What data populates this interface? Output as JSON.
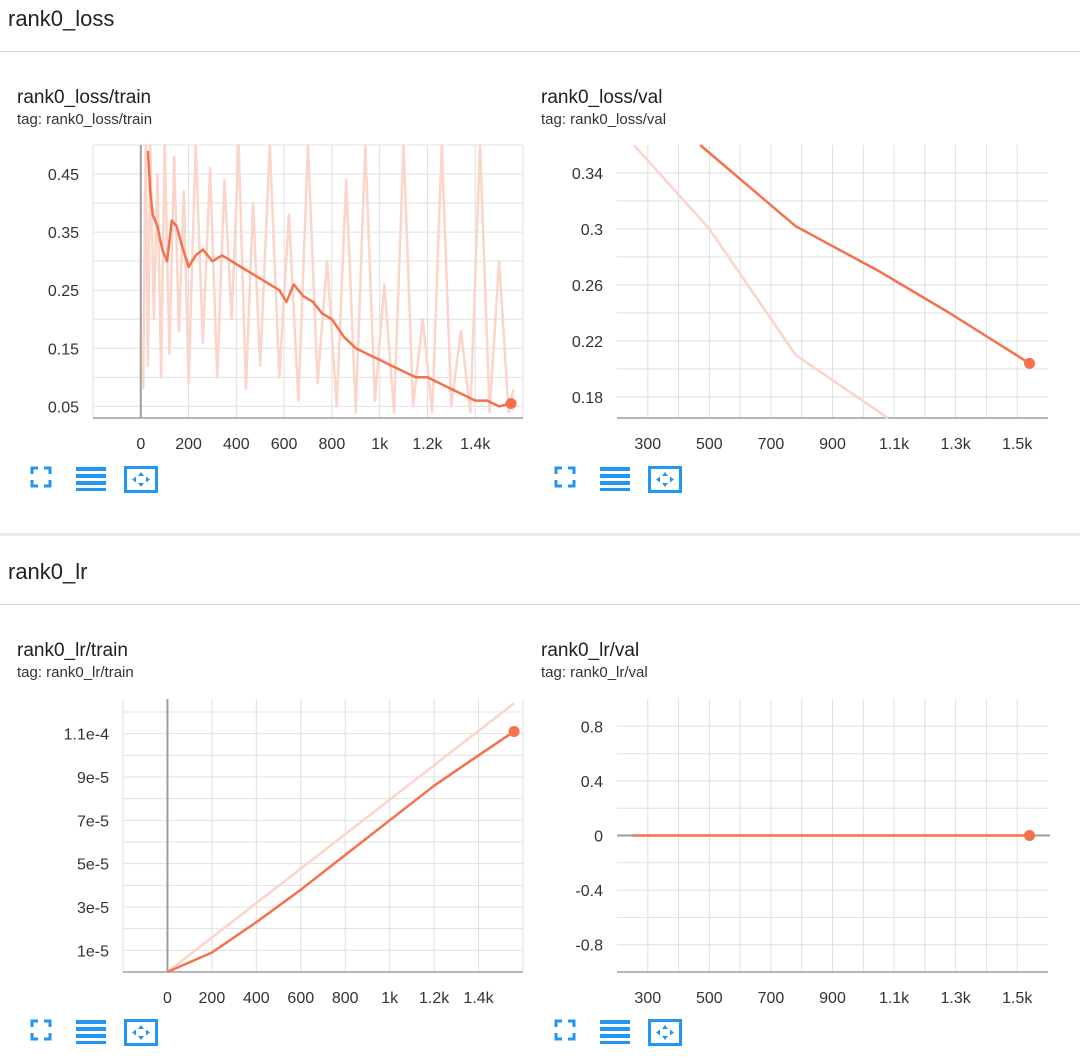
{
  "sections": [
    {
      "title": "rank0_loss"
    },
    {
      "title": "rank0_lr"
    }
  ],
  "colors": {
    "series": "#f4714c",
    "raw": "#fbd5c9",
    "axis": "#9e9e9e",
    "grid": "#e0e0e0",
    "button": "#2196f3"
  },
  "buttons": [
    "fit-to-screen-icon",
    "toggle-log-scale-icon",
    "fit-domain-icon"
  ],
  "charts": [
    {
      "title": "rank0_loss/train",
      "tag": "tag: rank0_loss/train"
    },
    {
      "title": "rank0_loss/val",
      "tag": "tag: rank0_loss/val"
    },
    {
      "title": "rank0_lr/train",
      "tag": "tag: rank0_lr/train"
    },
    {
      "title": "rank0_lr/val",
      "tag": "tag: rank0_lr/val"
    }
  ],
  "chart_data": [
    {
      "type": "line",
      "title": "rank0_loss/train",
      "xlim": [
        -200,
        1600
      ],
      "ylim": [
        0.03,
        0.5
      ],
      "xticks": [
        0,
        200,
        400,
        600,
        800,
        1000,
        1200,
        1400
      ],
      "xtick_labels": [
        "0",
        "200",
        "400",
        "600",
        "800",
        "1k",
        "1.2k",
        "1.4k"
      ],
      "yticks": [
        0.05,
        0.15,
        0.25,
        0.35,
        0.45
      ],
      "ytick_labels": [
        "0.05",
        "0.15",
        "0.25",
        "0.35",
        "0.45"
      ],
      "series": [
        {
          "role": "smoothed",
          "x": [
            30,
            40,
            50,
            70,
            90,
            110,
            130,
            150,
            170,
            200,
            230,
            260,
            300,
            340,
            380,
            420,
            460,
            500,
            540,
            580,
            610,
            640,
            680,
            720,
            760,
            800,
            850,
            900,
            950,
            1000,
            1050,
            1100,
            1150,
            1200,
            1250,
            1300,
            1350,
            1400,
            1450,
            1500,
            1550
          ],
          "y": [
            0.49,
            0.42,
            0.38,
            0.36,
            0.32,
            0.3,
            0.37,
            0.36,
            0.33,
            0.29,
            0.31,
            0.32,
            0.3,
            0.31,
            0.3,
            0.29,
            0.28,
            0.27,
            0.26,
            0.25,
            0.23,
            0.26,
            0.24,
            0.23,
            0.21,
            0.2,
            0.17,
            0.15,
            0.14,
            0.13,
            0.12,
            0.11,
            0.1,
            0.1,
            0.09,
            0.08,
            0.07,
            0.06,
            0.06,
            0.05,
            0.055
          ]
        },
        {
          "role": "raw",
          "x": [
            10,
            20,
            30,
            40,
            55,
            70,
            85,
            100,
            120,
            140,
            160,
            180,
            200,
            230,
            260,
            290,
            320,
            350,
            380,
            410,
            440,
            470,
            500,
            540,
            580,
            620,
            660,
            700,
            740,
            780,
            820,
            860,
            900,
            940,
            980,
            1020,
            1060,
            1100,
            1140,
            1180,
            1220,
            1260,
            1300,
            1340,
            1380,
            1420,
            1460,
            1500,
            1540,
            1560
          ],
          "y": [
            0.08,
            0.5,
            0.12,
            0.5,
            0.2,
            0.45,
            0.1,
            0.5,
            0.14,
            0.48,
            0.18,
            0.42,
            0.09,
            0.5,
            0.16,
            0.46,
            0.1,
            0.44,
            0.2,
            0.5,
            0.08,
            0.4,
            0.12,
            0.5,
            0.1,
            0.38,
            0.06,
            0.5,
            0.09,
            0.3,
            0.05,
            0.44,
            0.04,
            0.5,
            0.06,
            0.26,
            0.04,
            0.5,
            0.05,
            0.2,
            0.04,
            0.5,
            0.05,
            0.18,
            0.04,
            0.5,
            0.04,
            0.3,
            0.04,
            0.08
          ]
        }
      ]
    },
    {
      "type": "line",
      "title": "rank0_loss/val",
      "xlim": [
        200,
        1600
      ],
      "ylim": [
        0.165,
        0.36
      ],
      "xticks": [
        300,
        500,
        700,
        900,
        1100,
        1300,
        1500
      ],
      "xtick_labels": [
        "300",
        "500",
        "700",
        "900",
        "1.1k",
        "1.3k",
        "1.5k"
      ],
      "yticks": [
        0.18,
        0.22,
        0.26,
        0.3,
        0.34
      ],
      "ytick_labels": [
        "0.18",
        "0.22",
        "0.26",
        "0.3",
        "0.34"
      ],
      "series": [
        {
          "role": "smoothed",
          "x": [
            470,
            780,
            1050,
            1280,
            1540
          ],
          "y": [
            0.36,
            0.302,
            0.27,
            0.24,
            0.204
          ]
        },
        {
          "role": "raw",
          "x": [
            255,
            500,
            780,
            1080
          ],
          "y": [
            0.36,
            0.3,
            0.21,
            0.165
          ]
        }
      ]
    },
    {
      "type": "line",
      "title": "rank0_lr/train",
      "xlim": [
        -200,
        1600
      ],
      "ylim": [
        0,
        0.000126
      ],
      "xticks": [
        0,
        200,
        400,
        600,
        800,
        1000,
        1200,
        1400
      ],
      "xtick_labels": [
        "0",
        "200",
        "400",
        "600",
        "800",
        "1k",
        "1.2k",
        "1.4k"
      ],
      "yticks": [
        1e-05,
        3e-05,
        5e-05,
        7e-05,
        9e-05,
        0.00011
      ],
      "ytick_labels": [
        "1e-5",
        "3e-5",
        "5e-5",
        "7e-5",
        "9e-5",
        "1.1e-4"
      ],
      "series": [
        {
          "role": "smoothed",
          "x": [
            0,
            200,
            400,
            600,
            800,
            1000,
            1200,
            1400,
            1560
          ],
          "y": [
            0,
            9e-06,
            2.3e-05,
            3.8e-05,
            5.4e-05,
            7e-05,
            8.6e-05,
            0.0001,
            0.000111
          ]
        },
        {
          "role": "raw",
          "x": [
            0,
            1560
          ],
          "y": [
            0,
            0.000124
          ]
        }
      ]
    },
    {
      "type": "line",
      "title": "rank0_lr/val",
      "xlim": [
        200,
        1600
      ],
      "ylim": [
        -1.0,
        1.0
      ],
      "xticks": [
        300,
        500,
        700,
        900,
        1100,
        1300,
        1500
      ],
      "xtick_labels": [
        "300",
        "500",
        "700",
        "900",
        "1.1k",
        "1.3k",
        "1.5k"
      ],
      "yticks": [
        -0.8,
        -0.4,
        0,
        0.4,
        0.8
      ],
      "ytick_labels": [
        "-0.8",
        "-0.4",
        "0",
        "0.4",
        "0.8"
      ],
      "series": [
        {
          "role": "smoothed",
          "x": [
            250,
            1540
          ],
          "y": [
            0,
            0
          ]
        }
      ]
    }
  ]
}
